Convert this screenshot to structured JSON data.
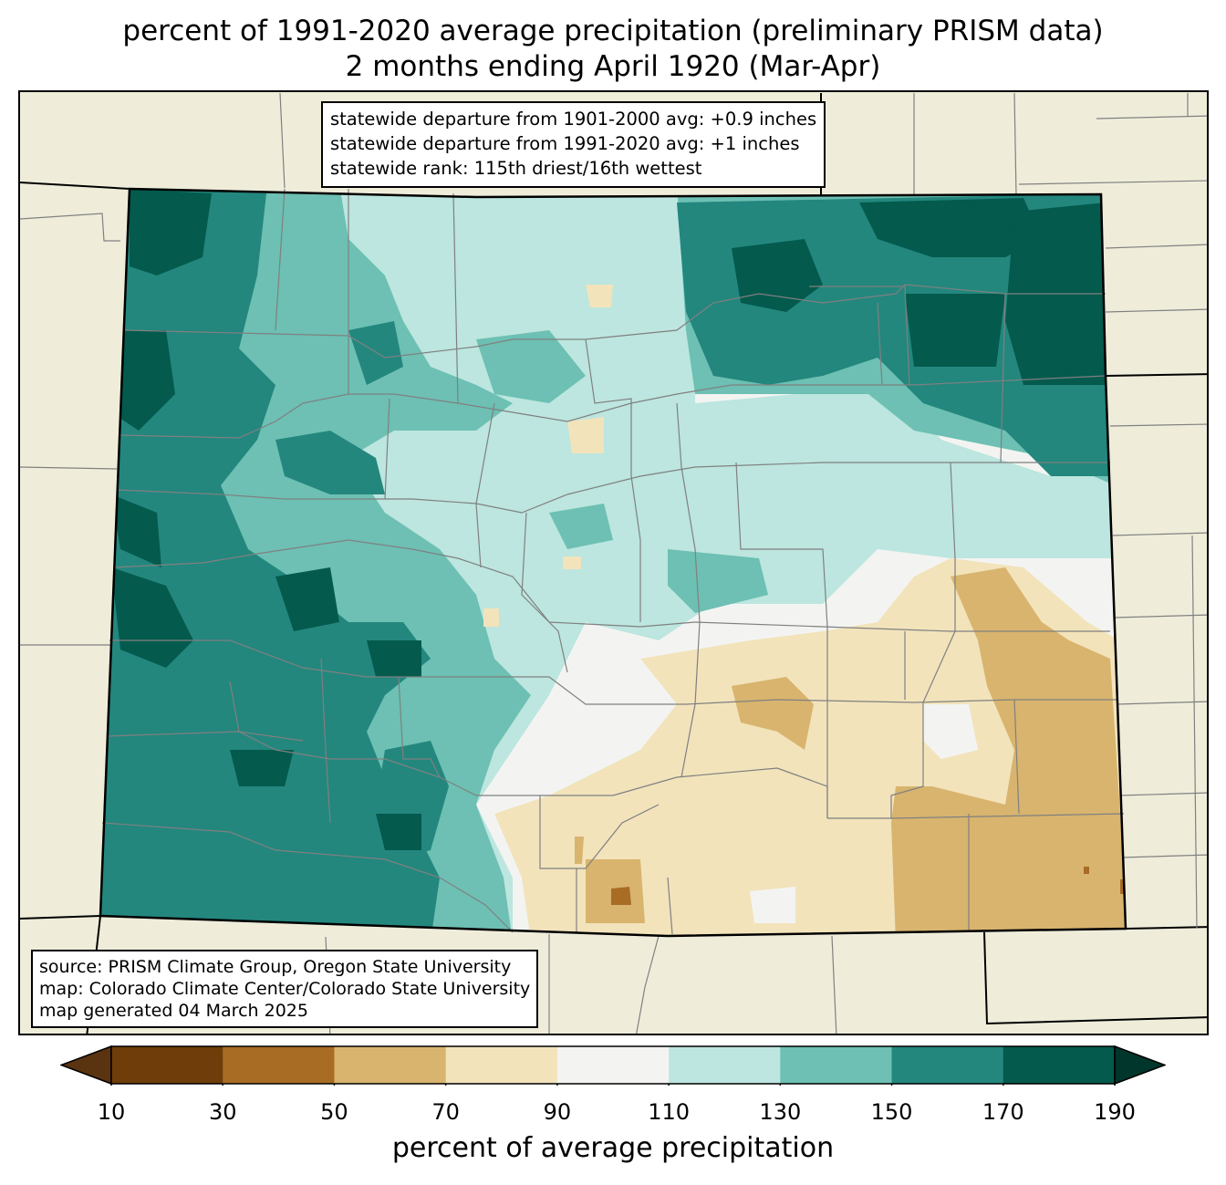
{
  "title": {
    "line1": "percent of 1991-2020 average precipitation (preliminary PRISM data)",
    "line2": "2 months ending April 1920 (Mar-Apr)"
  },
  "stats_box": {
    "line1": "statewide departure from 1901-2000 avg: +0.9 inches",
    "line2": "statewide departure from 1991-2020 avg: +1 inches",
    "line3": "statewide rank: 115th driest/16th wettest"
  },
  "source_box": {
    "line1": "source: PRISM Climate Group, Oregon State University",
    "line2": "map: Colorado Climate Center/Colorado State University",
    "line3": "map generated 04 March 2025"
  },
  "colorbar": {
    "label": "percent of average precipitation",
    "ticks": [
      "10",
      "30",
      "50",
      "70",
      "90",
      "110",
      "130",
      "150",
      "170",
      "190"
    ],
    "below_color": "#5a3310",
    "above_color": "#01362c",
    "bins": [
      {
        "from": 10,
        "to": 30,
        "color": "#6f3d0a"
      },
      {
        "from": 30,
        "to": 50,
        "color": "#a86c24"
      },
      {
        "from": 50,
        "to": 70,
        "color": "#d8b46e"
      },
      {
        "from": 70,
        "to": 90,
        "color": "#f2e3bb"
      },
      {
        "from": 90,
        "to": 110,
        "color": "#f3f4f2"
      },
      {
        "from": 110,
        "to": 130,
        "color": "#bce6df"
      },
      {
        "from": 130,
        "to": 150,
        "color": "#6dc0b3"
      },
      {
        "from": 150,
        "to": 170,
        "color": "#23877e"
      },
      {
        "from": 170,
        "to": 190,
        "color": "#035a4d"
      }
    ]
  },
  "colors": {
    "land_outside": "#efedda",
    "county_lines": "#808080",
    "state_lines": "#000000"
  }
}
